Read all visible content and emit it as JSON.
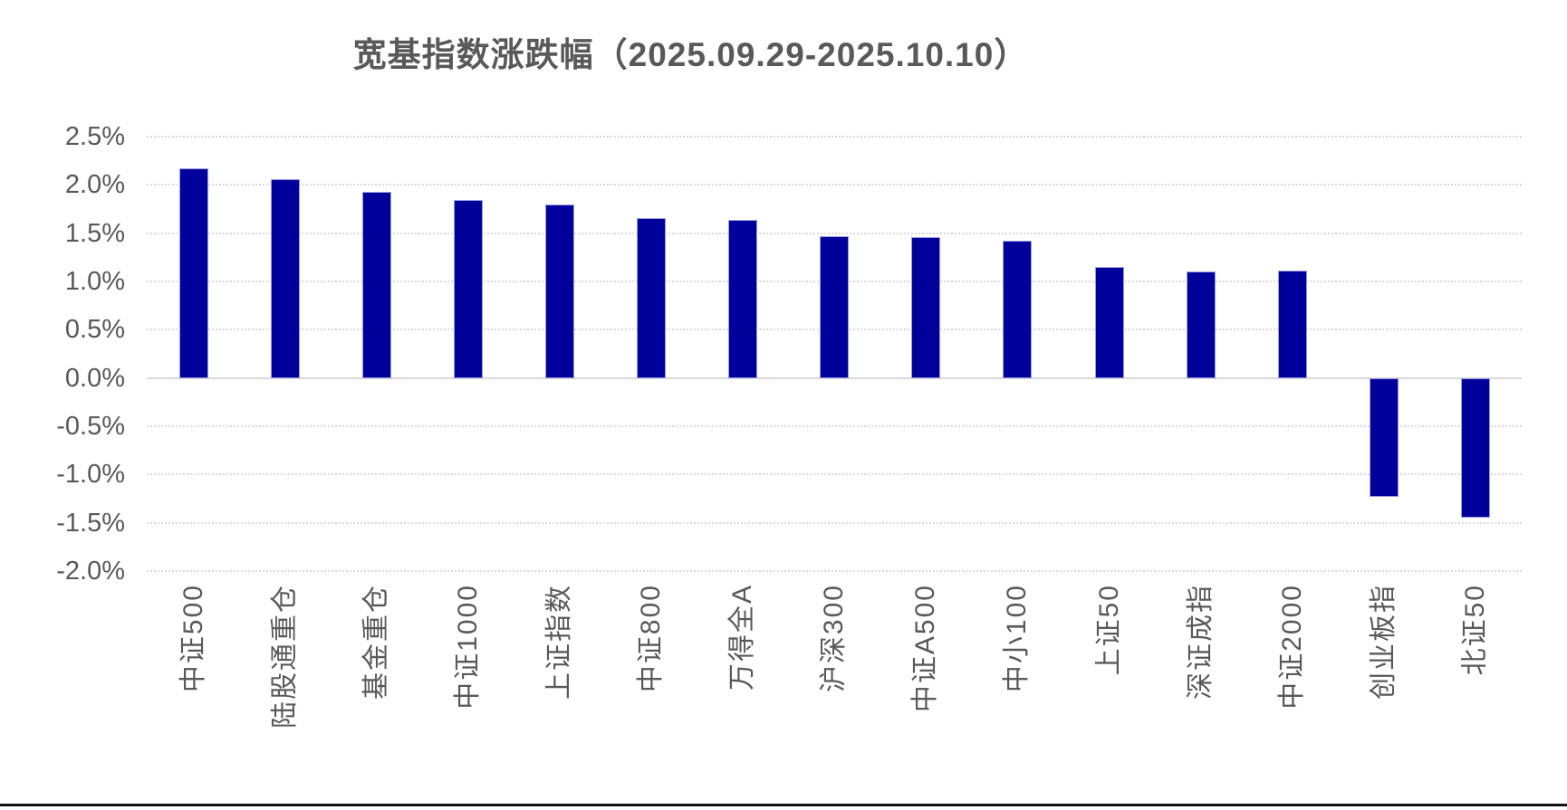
{
  "page": {
    "background_color": "#ffffff",
    "text_color": "#595959"
  },
  "chart_data": {
    "type": "bar",
    "title": "宽基指数涨跌幅（2025.09.29-2025.10.10）",
    "categories": [
      "中证500",
      "陆股通重仓",
      "基金重仓",
      "中证1000",
      "上证指数",
      "中证800",
      "万得全A",
      "沪深300",
      "中证A500",
      "中小100",
      "上证50",
      "深证成指",
      "中证2000",
      "创业板指",
      "北证50"
    ],
    "values": [
      2.17,
      2.06,
      1.93,
      1.84,
      1.8,
      1.66,
      1.64,
      1.47,
      1.46,
      1.42,
      1.15,
      1.1,
      1.11,
      -1.23,
      -1.45
    ],
    "unit": "%",
    "xlabel": "",
    "ylabel": "",
    "ylim": [
      -2.0,
      2.5
    ],
    "ytick_step": 0.5,
    "ytick_labels": [
      "2.5%",
      "2.0%",
      "1.5%",
      "1.0%",
      "0.5%",
      "0.0%",
      "-0.5%",
      "-1.0%",
      "-1.5%",
      "-2.0%"
    ],
    "grid": true,
    "legend_position": "none",
    "bar_color": "#00009b",
    "bar_border_color": "#9b9bdf",
    "gridline_color": "#d9d9d9",
    "axis_text_color": "#595959",
    "title_color": "#595959"
  }
}
